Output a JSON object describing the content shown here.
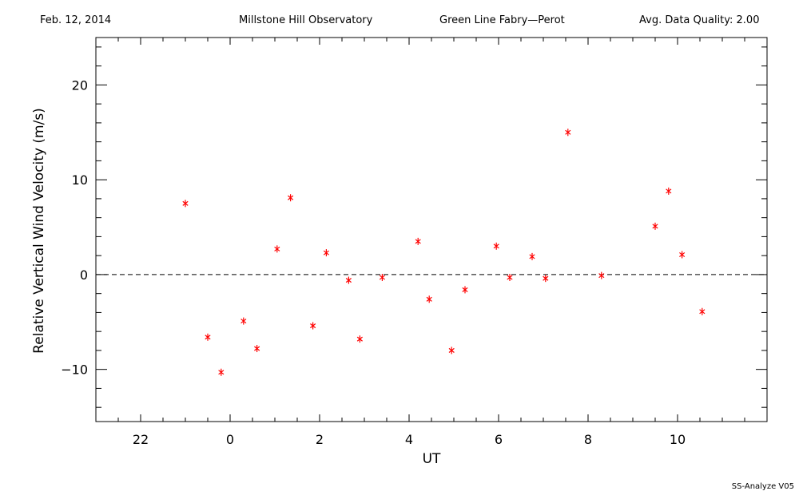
{
  "header": {
    "date": "Feb. 12, 2014",
    "observatory": "Millstone Hill Observatory",
    "instrument": "Green Line Fabry—Perot",
    "quality": "Avg. Data Quality: 2.00"
  },
  "footer": "SS-Analyze V05",
  "chart_data": {
    "type": "scatter",
    "title": "",
    "xlabel": "UT",
    "ylabel": "Relative Vertical Wind Velocity (m/s)",
    "xlim": [
      -3,
      12
    ],
    "ylim": [
      -15.5,
      25
    ],
    "x_major_ticks": [
      -2,
      0,
      2,
      4,
      6,
      8,
      10
    ],
    "x_tick_labels": [
      "22",
      "0",
      "2",
      "4",
      "6",
      "8",
      "10"
    ],
    "y_major_ticks": [
      -10,
      0,
      10,
      20
    ],
    "y_tick_labels": [
      "−10",
      "0",
      "10",
      "20"
    ],
    "reference_line": {
      "y": 0,
      "style": "dashed"
    },
    "marker": "asterisk",
    "colors": {
      "points": "#ff0000",
      "axes": "#000000",
      "reference": "#000000"
    },
    "series": [
      {
        "x": [
          -1.0,
          -0.5,
          -0.2,
          0.3,
          0.6,
          1.05,
          1.35,
          1.85,
          2.15,
          2.65,
          2.9,
          3.4,
          4.2,
          4.45,
          4.95,
          5.25,
          5.95,
          6.25,
          6.75,
          7.05,
          7.55,
          8.3,
          9.5,
          9.8,
          10.1,
          10.55
        ],
        "y": [
          7.5,
          -6.6,
          -10.3,
          -4.9,
          -7.8,
          2.7,
          8.1,
          -5.4,
          2.3,
          -0.6,
          -6.8,
          -0.3,
          3.5,
          -2.6,
          -8.0,
          -1.6,
          3.0,
          -0.3,
          1.9,
          -0.4,
          15.0,
          -0.1,
          5.1,
          8.8,
          2.1,
          -3.9
        ]
      }
    ]
  }
}
